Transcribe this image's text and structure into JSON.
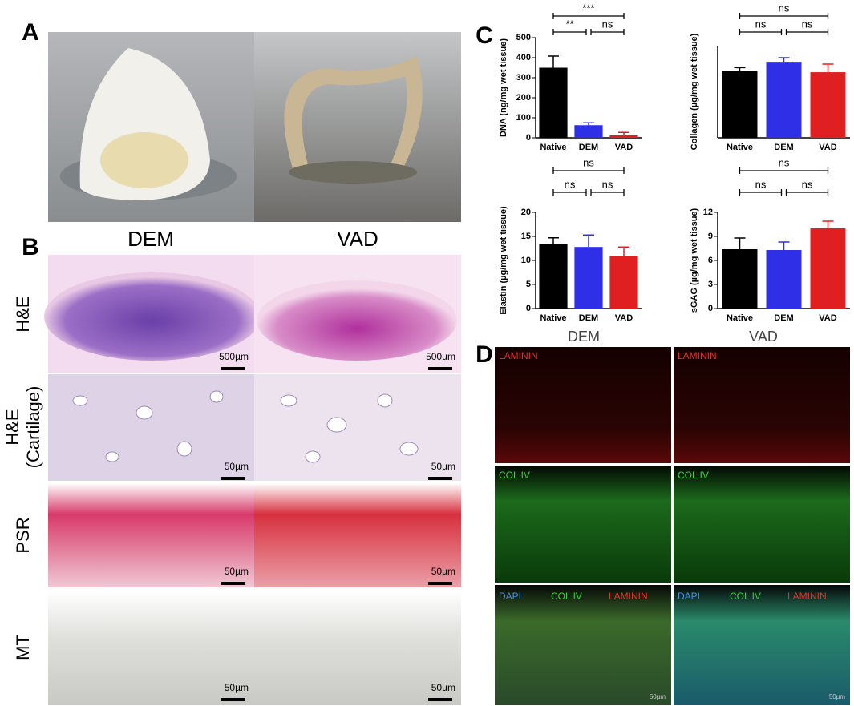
{
  "panel_labels": [
    "A",
    "B",
    "C",
    "D"
  ],
  "panel_a": {
    "labels": [
      "DEM",
      "VAD"
    ]
  },
  "panel_b": {
    "rows": [
      [
        "H&E"
      ],
      [
        "H&E",
        "(Cartilage)"
      ],
      [
        "PSR"
      ],
      [
        "MT"
      ]
    ],
    "scale_bars": [
      [
        "500µm",
        "500µm"
      ],
      [
        "50µm",
        "50µm"
      ],
      [
        "50µm",
        "50µm"
      ],
      [
        "50µm",
        "50µm"
      ]
    ]
  },
  "panel_d": {
    "columns": [
      "DEM",
      "VAD"
    ],
    "stains": [
      [
        {
          "text": "LAMININ",
          "color": "#e8302a"
        }
      ],
      [
        {
          "text": "COL IV",
          "color": "#39d23a"
        }
      ],
      [
        {
          "text": "DAPI",
          "color": "#4a8fe0"
        },
        {
          "text": "COL IV",
          "color": "#39d23a"
        },
        {
          "text": "LAMININ",
          "color": "#e8302a"
        }
      ]
    ],
    "scale_bar": "50µm"
  },
  "chart_data": [
    {
      "type": "bar",
      "ylabel": "DNA (ng/mg wet tissue)",
      "categories": [
        "Native",
        "DEM",
        "VAD"
      ],
      "values": [
        350,
        63,
        12
      ],
      "errors": [
        58,
        12,
        15
      ],
      "colors": [
        "#000000",
        "#2f2fe8",
        "#e02020"
      ],
      "ylim": [
        0,
        500
      ],
      "yticks": [
        0,
        100,
        200,
        300,
        400,
        500
      ],
      "annotations": [
        "***",
        "**",
        "ns"
      ]
    },
    {
      "type": "bar",
      "ylabel": "Collagen (µg/mg wet tissue)",
      "categories": [
        "Native",
        "DEM",
        "VAD"
      ],
      "values": [
        290,
        330,
        285
      ],
      "errors": [
        15,
        18,
        35
      ],
      "colors": [
        "#000000",
        "#2f2fe8",
        "#e02020"
      ],
      "ylim": [
        0,
        400
      ],
      "annotations": [
        "ns",
        "ns",
        "ns"
      ]
    },
    {
      "type": "bar",
      "ylabel": "Elastin (µg/mg wet tissue)",
      "categories": [
        "Native",
        "DEM",
        "VAD"
      ],
      "values": [
        13.5,
        12.8,
        11
      ],
      "errors": [
        1.2,
        2.5,
        1.8
      ],
      "colors": [
        "#000000",
        "#2f2fe8",
        "#e02020"
      ],
      "ylim": [
        0,
        20
      ],
      "yticks": [
        0,
        5,
        10,
        15,
        20
      ],
      "annotations": [
        "ns",
        "ns",
        "ns"
      ]
    },
    {
      "type": "bar",
      "ylabel": "sGAG (µg/mg wet tissue)",
      "categories": [
        "Native",
        "DEM",
        "VAD"
      ],
      "values": [
        7.4,
        7.3,
        10
      ],
      "errors": [
        1.4,
        1.0,
        0.9
      ],
      "colors": [
        "#000000",
        "#2f2fe8",
        "#e02020"
      ],
      "ylim": [
        0,
        12
      ],
      "yticks": [
        0,
        3,
        6,
        9,
        12
      ],
      "annotations": [
        "ns",
        "ns",
        "ns"
      ]
    }
  ]
}
